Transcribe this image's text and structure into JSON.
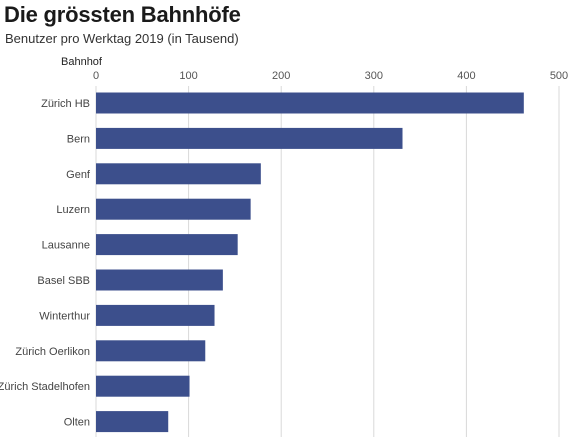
{
  "chart_data": {
    "type": "bar",
    "orientation": "horizontal",
    "title": "Die grössten Bahnhöfe",
    "subtitle": "Benutzer pro Werktag 2019 (in Tausend)",
    "category_axis_label": "Bahnhof",
    "categories": [
      "Zürich HB",
      "Bern",
      "Genf",
      "Luzern",
      "Lausanne",
      "Basel SBB",
      "Winterthur",
      "Zürich Oerlikon",
      "Zürich Stadelhofen",
      "Olten"
    ],
    "values": [
      462,
      331,
      178,
      167,
      153,
      137,
      128,
      118,
      101,
      78
    ],
    "xlim": [
      0,
      500
    ],
    "xticks": [
      0,
      100,
      200,
      300,
      400,
      500
    ],
    "grid": "vertical",
    "bar_color": "#3c4f8c",
    "grid_color": "#d9d9d9"
  }
}
